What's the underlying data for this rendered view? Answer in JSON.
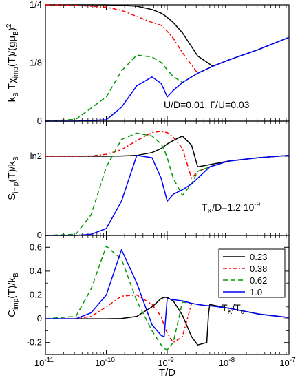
{
  "chart_data": [
    {
      "type": "line",
      "panel": "top",
      "ylabel": "kB T χimp(T)/(g μB)²",
      "ylabel_parts": {
        "a": "k",
        "a_sub": "B",
        "b": " T",
        "c": "χ",
        "c_sub": "imp",
        "d": "(T)/(gμ",
        "d_sub": "B",
        "e": ")",
        "e_sup": "2"
      },
      "ylim": [
        0,
        0.25
      ],
      "ytick_values": [
        0,
        0.125,
        0.25
      ],
      "ytick_labels": [
        "0",
        "1/8",
        "1/4"
      ],
      "annotation": "U/D=0.01, Γ/U=0.03",
      "x_log10": [
        -11,
        -10.5,
        -10,
        -9.75,
        -9.5,
        -9.25,
        -9.1,
        -9.05,
        -9,
        -8.9,
        -8.75,
        -8.5,
        -8.25,
        -8,
        -7.5,
        -7
      ],
      "series": [
        {
          "name": "0.23",
          "values": [
            0.25,
            0.25,
            0.25,
            0.249,
            0.247,
            0.24,
            0.232,
            0.228,
            0.223,
            0.212,
            0.19,
            0.14,
            0.118,
            0.131,
            0.154,
            0.18
          ]
        },
        {
          "name": "0.38",
          "values": [
            0.25,
            0.249,
            0.245,
            0.238,
            0.225,
            0.212,
            0.206,
            0.2,
            0.193,
            0.178,
            0.147,
            0.103,
            0.118,
            0.131,
            0.154,
            0.18
          ]
        },
        {
          "name": "0.62",
          "values": [
            0.0,
            0.004,
            0.052,
            0.108,
            0.142,
            0.138,
            0.126,
            0.119,
            0.11,
            0.096,
            0.083,
            0.103,
            0.118,
            0.131,
            0.154,
            0.18
          ]
        },
        {
          "name": "1.0",
          "values": [
            0.0,
            0.0,
            0.003,
            0.03,
            0.076,
            0.095,
            0.081,
            0.067,
            0.052,
            0.066,
            0.083,
            0.103,
            0.118,
            0.131,
            0.154,
            0.18
          ]
        }
      ]
    },
    {
      "type": "line",
      "panel": "middle",
      "ylabel_parts": {
        "a": "S",
        "a_sub": "imp",
        "b": "(T)/k",
        "b_sub": "B"
      },
      "ylim": [
        0,
        1
      ],
      "ytick_values": [
        0,
        0.6931
      ],
      "ytick_labels": [
        "0",
        "ln2"
      ],
      "annotation_parts": {
        "a": "T",
        "a_sub": "K",
        "b": "/D=1.2 10",
        "b_sup": "-9"
      },
      "x_log10": [
        -11,
        -10.5,
        -10.25,
        -10,
        -9.75,
        -9.5,
        -9.25,
        -9.1,
        -9.05,
        -9,
        -8.9,
        -8.75,
        -8.6,
        -8.5,
        -8.3,
        -8,
        -7.5,
        -7
      ],
      "series": [
        {
          "name": "0.23",
          "values": [
            0.693,
            0.693,
            0.693,
            0.693,
            0.695,
            0.7,
            0.725,
            0.76,
            0.78,
            0.8,
            0.83,
            0.87,
            0.79,
            0.6,
            0.62,
            0.65,
            0.68,
            0.7
          ]
        },
        {
          "name": "0.38",
          "values": [
            0.693,
            0.693,
            0.695,
            0.71,
            0.75,
            0.83,
            0.9,
            0.91,
            0.905,
            0.9,
            0.86,
            0.76,
            0.5,
            0.56,
            0.6,
            0.65,
            0.68,
            0.7
          ]
        },
        {
          "name": "0.62",
          "values": [
            0.0,
            0.01,
            0.18,
            0.6,
            0.84,
            0.895,
            0.87,
            0.8,
            0.75,
            0.68,
            0.5,
            0.35,
            0.45,
            0.56,
            0.6,
            0.65,
            0.68,
            0.7
          ]
        },
        {
          "name": "1.0",
          "values": [
            0.0,
            0.0,
            0.01,
            0.06,
            0.3,
            0.7,
            0.68,
            0.5,
            0.4,
            0.3,
            0.36,
            0.4,
            0.45,
            0.5,
            0.6,
            0.65,
            0.68,
            0.7
          ]
        }
      ]
    },
    {
      "type": "line",
      "panel": "bottom",
      "ylabel_parts": {
        "a": "C",
        "a_sub": "imp",
        "b": "(T)/k",
        "b_sub": "B"
      },
      "ylim": [
        -0.3,
        0.7
      ],
      "ytick_values": [
        -0.2,
        0,
        0.2,
        0.4,
        0.6
      ],
      "ytick_labels": [
        "-0.2",
        "0",
        "0.2",
        "0.4",
        "0.6"
      ],
      "xlabel": "T/D",
      "xlim_log10": [
        -11,
        -7
      ],
      "xtick_values": [
        -11,
        -10,
        -9,
        -8,
        -7
      ],
      "xtick_base": "10",
      "xtick_exponents": [
        "-11",
        "-10",
        "-9",
        "-8",
        "-7"
      ],
      "legend_title_parts": {
        "a": "T",
        "a_sub": "K",
        "b": "/T",
        "b_sub": "c"
      },
      "legend_position": "top-right",
      "x_log10": [
        -11,
        -10.5,
        -10.25,
        -10,
        -9.75,
        -9.5,
        -9.25,
        -9.1,
        -9.05,
        -9,
        -8.9,
        -8.75,
        -8.6,
        -8.5,
        -8.35,
        -8.32,
        -8.3,
        -8,
        -7.5,
        -7
      ],
      "series": [
        {
          "name": "0.23",
          "color": "#000000",
          "dash": "solid",
          "values": [
            0.0,
            0.0,
            0.0,
            0.0,
            0.002,
            0.02,
            0.1,
            0.17,
            0.18,
            0.18,
            0.15,
            0.03,
            -0.15,
            -0.22,
            -0.2,
            0.05,
            0.12,
            0.09,
            0.04,
            0.01
          ]
        },
        {
          "name": "0.38",
          "color": "#ff0000",
          "dash": "dashdot",
          "values": [
            0.0,
            0.0,
            0.02,
            0.1,
            0.19,
            0.2,
            0.12,
            0.02,
            -0.06,
            -0.12,
            -0.2,
            -0.15,
            0.13,
            0.12,
            0.11,
            0.11,
            0.11,
            0.09,
            0.04,
            0.01
          ]
        },
        {
          "name": "0.62",
          "color": "#009900",
          "dash": "dashed",
          "values": [
            0.0,
            0.02,
            0.25,
            0.61,
            0.5,
            0.15,
            -0.1,
            -0.22,
            -0.25,
            -0.26,
            -0.2,
            0.14,
            0.13,
            0.12,
            0.11,
            0.11,
            0.11,
            0.09,
            0.04,
            0.01
          ]
        },
        {
          "name": "1.0",
          "color": "#0000ff",
          "dash": "solid",
          "values": [
            0.0,
            0.0,
            0.05,
            0.2,
            0.58,
            0.3,
            -0.05,
            -0.14,
            -0.15,
            0.17,
            0.16,
            0.15,
            0.13,
            0.12,
            0.11,
            0.11,
            0.11,
            0.09,
            0.04,
            0.01
          ]
        }
      ]
    }
  ]
}
